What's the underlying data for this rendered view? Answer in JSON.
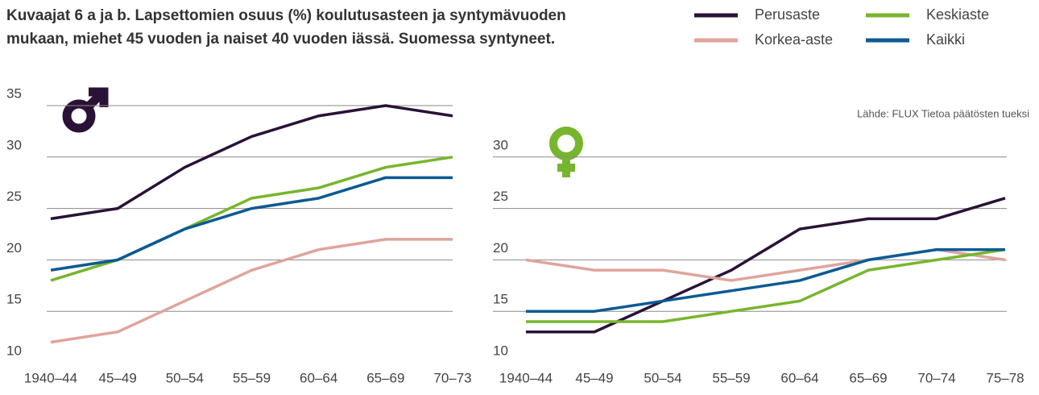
{
  "title": [
    "Kuvaajat 6 a ja b. Lapsettomien osuus (%) koulutusasteen ja syntymävuoden",
    "mukaan, miehet 45 vuoden ja naiset 40 vuoden iässä. Suomessa syntyneet."
  ],
  "chart_data": [
    {
      "type": "line",
      "categories": [
        "1940–44",
        "45–49",
        "50–54",
        "55–59",
        "60–64",
        "65–69",
        "70–73"
      ],
      "ylim": [
        10,
        35
      ],
      "yticks": [
        10,
        15,
        20,
        25,
        30,
        35
      ],
      "grid": true,
      "series": [
        {
          "name": "Perusaste",
          "color": "#2a1236",
          "values": [
            24,
            25,
            29,
            32,
            34,
            35,
            34
          ]
        },
        {
          "name": "Korkea-aste",
          "color": "#e0a49c",
          "values": [
            12,
            13,
            16,
            19,
            21,
            22,
            22
          ]
        },
        {
          "name": "Keskiaste",
          "color": "#78b52e",
          "values": [
            18,
            20,
            23,
            26,
            27,
            29,
            30
          ]
        },
        {
          "name": "Kaikki",
          "color": "#0b5a94",
          "values": [
            19,
            20,
            23,
            25,
            26,
            28,
            28
          ]
        }
      ]
    },
    {
      "type": "line",
      "annotation": "Lähde: FLUX Tietoa päätösten tueksi",
      "categories": [
        "1940–44",
        "45–49",
        "50–54",
        "55–59",
        "60–64",
        "65–69",
        "70–74",
        "75–78"
      ],
      "ylim": [
        10,
        35
      ],
      "yticks": [
        10,
        15,
        20,
        25,
        30
      ],
      "grid": true,
      "series": [
        {
          "name": "Perusaste",
          "color": "#2a1236",
          "values": [
            13,
            13,
            16,
            19,
            23,
            24,
            24,
            26
          ]
        },
        {
          "name": "Korkea-aste",
          "color": "#e0a49c",
          "values": [
            20,
            19,
            19,
            18,
            19,
            20,
            21,
            20
          ]
        },
        {
          "name": "Keskiaste",
          "color": "#78b52e",
          "values": [
            14,
            14,
            14,
            15,
            16,
            19,
            20,
            21
          ]
        },
        {
          "name": "Kaikki",
          "color": "#0b5a94",
          "values": [
            15,
            15,
            16,
            17,
            18,
            20,
            21,
            21
          ]
        }
      ]
    }
  ]
}
